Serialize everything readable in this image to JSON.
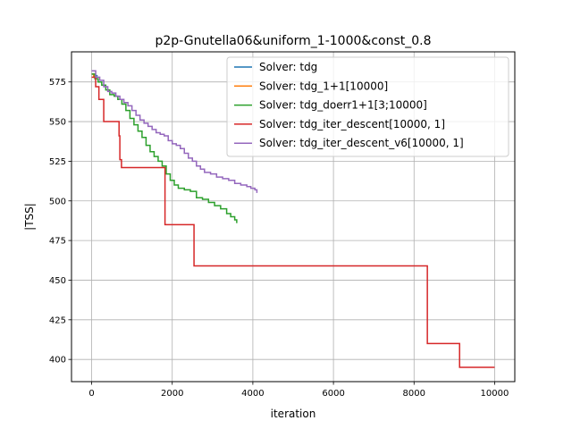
{
  "chart_data": {
    "type": "line",
    "title": "p2p-Gnutella06&uniform_1-1000&const_0.8",
    "xlabel": "iteration",
    "ylabel": "|TSS|",
    "xlim": [
      -500,
      10500
    ],
    "ylim": [
      386,
      594
    ],
    "xticks": [
      0,
      2000,
      4000,
      6000,
      8000,
      10000
    ],
    "xtick_labels": [
      "0",
      "2000",
      "4000",
      "6000",
      "8000",
      "10000"
    ],
    "yticks": [
      400,
      425,
      450,
      475,
      500,
      525,
      550,
      575
    ],
    "ytick_labels": [
      "400",
      "425",
      "450",
      "475",
      "500",
      "525",
      "550",
      "575"
    ],
    "grid": true,
    "legend_position": "top-right",
    "series": [
      {
        "name": "Solver: tdg",
        "color": "#1f77b4",
        "step": true,
        "x": [
          0,
          50,
          150
        ],
        "y": [
          580,
          579,
          579
        ]
      },
      {
        "name": "Solver: tdg_1+1[10000]",
        "color": "#ff7f0e",
        "step": true,
        "x": [
          0,
          50,
          150
        ],
        "y": [
          580,
          578,
          578
        ]
      },
      {
        "name": "Solver: tdg_doerr1+1[3;10000]",
        "color": "#2ca02c",
        "step": true,
        "x": [
          0,
          80,
          160,
          250,
          350,
          450,
          560,
          650,
          750,
          850,
          950,
          1050,
          1150,
          1250,
          1350,
          1450,
          1550,
          1650,
          1750,
          1850,
          1950,
          2050,
          2150,
          2300,
          2450,
          2600,
          2750,
          2900,
          3050,
          3200,
          3350,
          3450,
          3550,
          3600
        ],
        "y": [
          580,
          577,
          575,
          573,
          570,
          567,
          566,
          564,
          561,
          557,
          552,
          548,
          544,
          540,
          535,
          531,
          528,
          525,
          522,
          517,
          513,
          510,
          508,
          507,
          506,
          502,
          501,
          499,
          497,
          495,
          492,
          490,
          488,
          486
        ]
      },
      {
        "name": "Solver: tdg_iter_descent[10000, 1]",
        "color": "#d62728",
        "step": true,
        "x": [
          0,
          100,
          180,
          300,
          680,
          700,
          740,
          1780,
          1820,
          2500,
          2540,
          8300,
          8330,
          9100,
          9130,
          10000
        ],
        "y": [
          578,
          572,
          564,
          550,
          541,
          526,
          521,
          521,
          485,
          485,
          459,
          459,
          410,
          410,
          395,
          395
        ]
      },
      {
        "name": "Solver: tdg_iter_descent_v6[10000, 1]",
        "color": "#9467bd",
        "step": true,
        "x": [
          0,
          100,
          200,
          300,
          400,
          500,
          600,
          700,
          800,
          900,
          1000,
          1100,
          1200,
          1300,
          1400,
          1500,
          1600,
          1700,
          1800,
          1900,
          2000,
          2100,
          2200,
          2300,
          2400,
          2500,
          2600,
          2700,
          2800,
          2950,
          3100,
          3250,
          3400,
          3550,
          3700,
          3850,
          3950,
          4050,
          4100
        ],
        "y": [
          582,
          578,
          576,
          572,
          569,
          568,
          566,
          564,
          562,
          560,
          557,
          554,
          551,
          549,
          547,
          545,
          543,
          542,
          541,
          538,
          536,
          535,
          533,
          530,
          527,
          525,
          522,
          520,
          518,
          517,
          515,
          514,
          513,
          511,
          510,
          509,
          508,
          507,
          505
        ]
      }
    ]
  }
}
